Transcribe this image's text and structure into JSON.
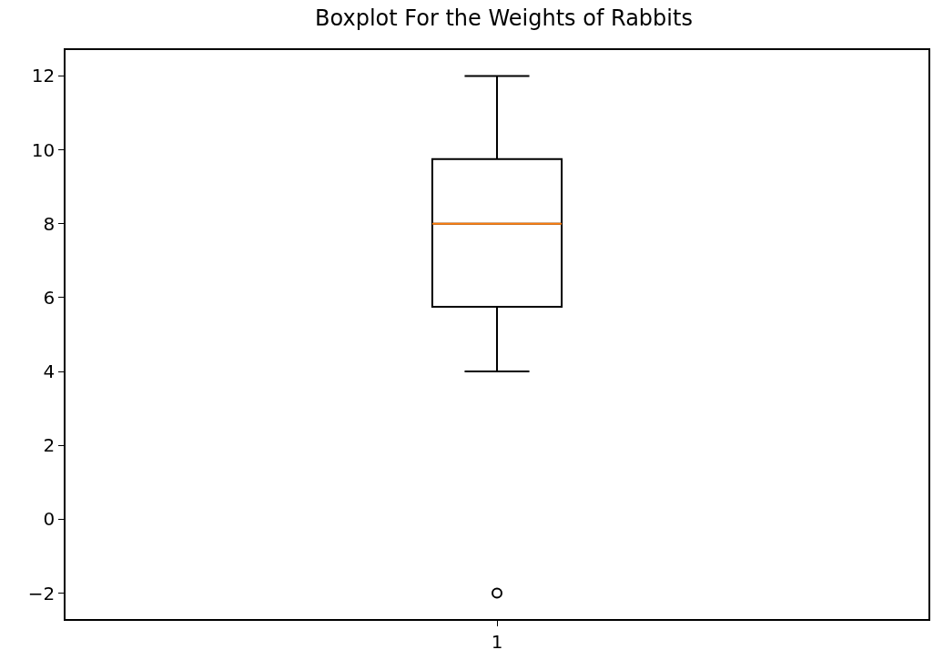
{
  "chart_data": {
    "type": "box",
    "title": "Boxplot For the Weights of Rabbits",
    "categories": [
      "1"
    ],
    "series": [
      {
        "color": "#000000",
        "boxes": [
          {
            "low": 4,
            "q1": 5.75,
            "median": 8,
            "q3": 9.75,
            "high": 12,
            "outliers": [
              -2
            ]
          }
        ]
      }
    ],
    "ylim": [
      -2.7,
      12.7
    ],
    "yticks": [
      -2,
      0,
      2,
      4,
      6,
      8,
      10,
      12
    ],
    "marker": "circle"
  }
}
